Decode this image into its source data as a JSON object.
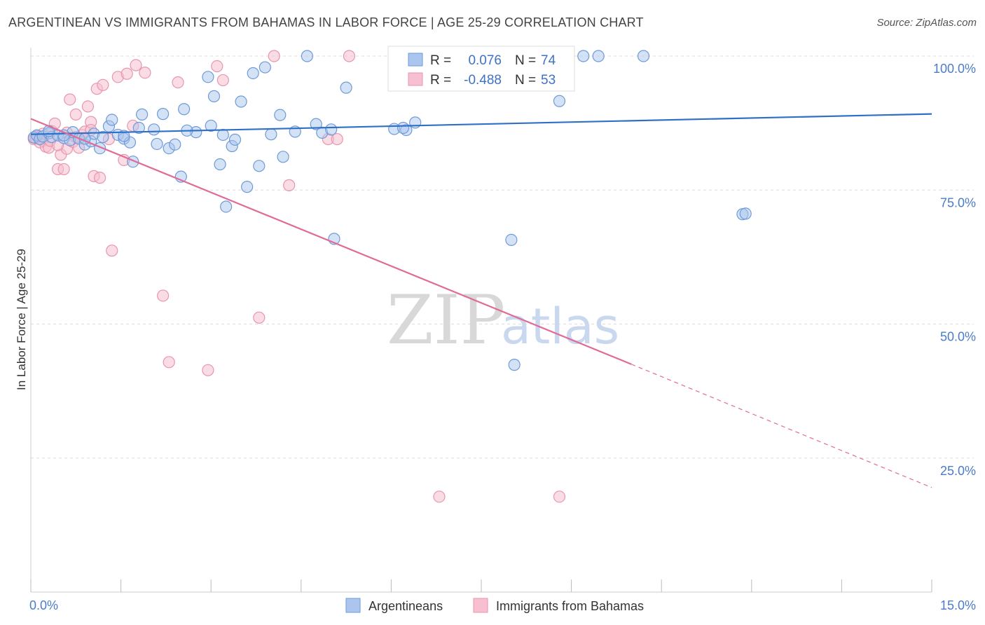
{
  "title": "ARGENTINEAN VS IMMIGRANTS FROM BAHAMAS IN LABOR FORCE | AGE 25-29 CORRELATION CHART",
  "source": "Source: ZipAtlas.com",
  "watermark": {
    "zip": "ZIP",
    "atlas": "atlas"
  },
  "legend": {
    "r_label": "R =",
    "n_label": "N =",
    "rows": [
      {
        "r": "0.076",
        "n": "74"
      },
      {
        "r": "-0.488",
        "n": "53"
      }
    ]
  },
  "bottom_legend": [
    "Argentineans",
    "Immigrants from Bahamas"
  ],
  "colors": {
    "blue_stroke": "#6f9ad8",
    "blue_fill": "#aac6ee",
    "blue_line": "#2f6fc8",
    "pink_stroke": "#e895b0",
    "pink_fill": "#f6c0d0",
    "pink_line": "#e06b98",
    "tick_text": "#4a7cc9",
    "grid": "#dddddd"
  },
  "chart_data": {
    "type": "scatter",
    "title": "ARGENTINEAN VS IMMIGRANTS FROM BAHAMAS IN LABOR FORCE | AGE 25-29 CORRELATION CHART",
    "xlabel": "",
    "ylabel": "In Labor Force | Age 25-29",
    "xlim": [
      0,
      15
    ],
    "ylim": [
      0,
      100
    ],
    "x_tick_labels": [
      "0.0%",
      "15.0%"
    ],
    "y_ticks": [
      25,
      50,
      75,
      100
    ],
    "y_tick_labels": [
      "25.0%",
      "50.0%",
      "75.0%",
      "100.0%"
    ],
    "grid": true,
    "legend_position": "top-center",
    "series": [
      {
        "name": "Argentineans",
        "r": 0.076,
        "n": 74,
        "trend": {
          "x0": 0,
          "y0": 85.4,
          "x1": 15,
          "y1": 89.2
        },
        "points": [
          [
            0.05,
            84.8
          ],
          [
            0.1,
            85.2
          ],
          [
            0.15,
            84.5
          ],
          [
            0.2,
            85.0
          ],
          [
            0.3,
            85.6
          ],
          [
            0.35,
            84.9
          ],
          [
            0.45,
            85.2
          ],
          [
            0.55,
            84.7
          ],
          [
            0.65,
            84.3
          ],
          [
            0.7,
            85.8
          ],
          [
            0.8,
            84.6
          ],
          [
            0.9,
            83.5
          ],
          [
            1.0,
            84.1
          ],
          [
            1.05,
            85.5
          ],
          [
            1.15,
            82.8
          ],
          [
            1.3,
            86.9
          ],
          [
            1.35,
            88.1
          ],
          [
            1.45,
            85.3
          ],
          [
            1.55,
            84.6
          ],
          [
            1.65,
            83.9
          ],
          [
            1.7,
            80.3
          ],
          [
            1.8,
            86.6
          ],
          [
            1.85,
            89.1
          ],
          [
            2.05,
            86.3
          ],
          [
            2.1,
            83.6
          ],
          [
            2.2,
            89.2
          ],
          [
            2.3,
            82.8
          ],
          [
            2.4,
            83.5
          ],
          [
            2.5,
            77.5
          ],
          [
            2.55,
            90.1
          ],
          [
            2.75,
            85.8
          ],
          [
            2.95,
            96.1
          ],
          [
            3.0,
            87.0
          ],
          [
            3.05,
            92.5
          ],
          [
            3.15,
            79.8
          ],
          [
            3.25,
            71.9
          ],
          [
            3.35,
            83.2
          ],
          [
            3.4,
            84.4
          ],
          [
            3.5,
            91.5
          ],
          [
            3.6,
            75.6
          ],
          [
            3.7,
            96.8
          ],
          [
            3.8,
            79.5
          ],
          [
            3.9,
            97.9
          ],
          [
            4.0,
            85.4
          ],
          [
            4.15,
            89.0
          ],
          [
            4.2,
            81.2
          ],
          [
            4.6,
            100
          ],
          [
            4.75,
            87.3
          ],
          [
            4.85,
            85.7
          ],
          [
            5.0,
            86.3
          ],
          [
            5.05,
            65.9
          ],
          [
            5.25,
            94.1
          ],
          [
            6.05,
            86.4
          ],
          [
            6.25,
            86.2
          ],
          [
            6.4,
            87.6
          ],
          [
            6.45,
            100
          ],
          [
            7.2,
            100
          ],
          [
            8.0,
            65.7
          ],
          [
            8.05,
            42.4
          ],
          [
            8.8,
            91.6
          ],
          [
            9.2,
            100
          ],
          [
            9.45,
            100
          ],
          [
            10.2,
            100
          ],
          [
            11.85,
            70.5
          ],
          [
            11.9,
            70.6
          ],
          [
            0.3,
            86.0
          ],
          [
            0.55,
            85.2
          ],
          [
            0.9,
            84.6
          ],
          [
            1.2,
            84.9
          ],
          [
            1.55,
            85.1
          ],
          [
            2.6,
            86.1
          ],
          [
            3.2,
            85.3
          ],
          [
            4.4,
            85.9
          ],
          [
            6.2,
            86.6
          ]
        ]
      },
      {
        "name": "Immigrants from Bahamas",
        "r": -0.488,
        "n": 53,
        "trend": {
          "x0": 0,
          "y0": 88.3,
          "x1": 10.0,
          "y1": 42.5,
          "dash_x1": 15,
          "dash_y1": 19.5
        },
        "points": [
          [
            0.05,
            84.5
          ],
          [
            0.1,
            85.0
          ],
          [
            0.15,
            83.9
          ],
          [
            0.2,
            84.2
          ],
          [
            0.25,
            83.1
          ],
          [
            0.3,
            82.9
          ],
          [
            0.35,
            86.0
          ],
          [
            0.4,
            87.4
          ],
          [
            0.45,
            78.9
          ],
          [
            0.5,
            81.6
          ],
          [
            0.55,
            78.9
          ],
          [
            0.6,
            82.7
          ],
          [
            0.65,
            91.9
          ],
          [
            0.7,
            84.0
          ],
          [
            0.75,
            89.1
          ],
          [
            0.8,
            82.9
          ],
          [
            0.85,
            85.3
          ],
          [
            0.9,
            85.9
          ],
          [
            0.95,
            90.6
          ],
          [
            1.0,
            87.7
          ],
          [
            1.05,
            77.6
          ],
          [
            1.1,
            93.9
          ],
          [
            1.15,
            77.3
          ],
          [
            1.2,
            94.6
          ],
          [
            1.3,
            84.5
          ],
          [
            1.35,
            63.7
          ],
          [
            1.45,
            96.1
          ],
          [
            1.55,
            80.6
          ],
          [
            1.6,
            96.7
          ],
          [
            1.75,
            98.3
          ],
          [
            1.9,
            96.9
          ],
          [
            2.2,
            55.3
          ],
          [
            2.3,
            42.9
          ],
          [
            2.45,
            95.1
          ],
          [
            2.95,
            41.4
          ],
          [
            3.1,
            98.1
          ],
          [
            3.8,
            51.2
          ],
          [
            4.05,
            100
          ],
          [
            4.3,
            75.9
          ],
          [
            4.95,
            84.5
          ],
          [
            5.1,
            84.5
          ],
          [
            5.3,
            100
          ],
          [
            6.8,
            17.8
          ],
          [
            8.8,
            17.8
          ],
          [
            0.08,
            84.7
          ],
          [
            0.2,
            85.5
          ],
          [
            0.32,
            84.2
          ],
          [
            0.45,
            83.4
          ],
          [
            0.6,
            85.7
          ],
          [
            0.75,
            84.9
          ],
          [
            1.0,
            86.2
          ],
          [
            1.7,
            87.0
          ],
          [
            3.2,
            95.5
          ]
        ]
      }
    ]
  }
}
